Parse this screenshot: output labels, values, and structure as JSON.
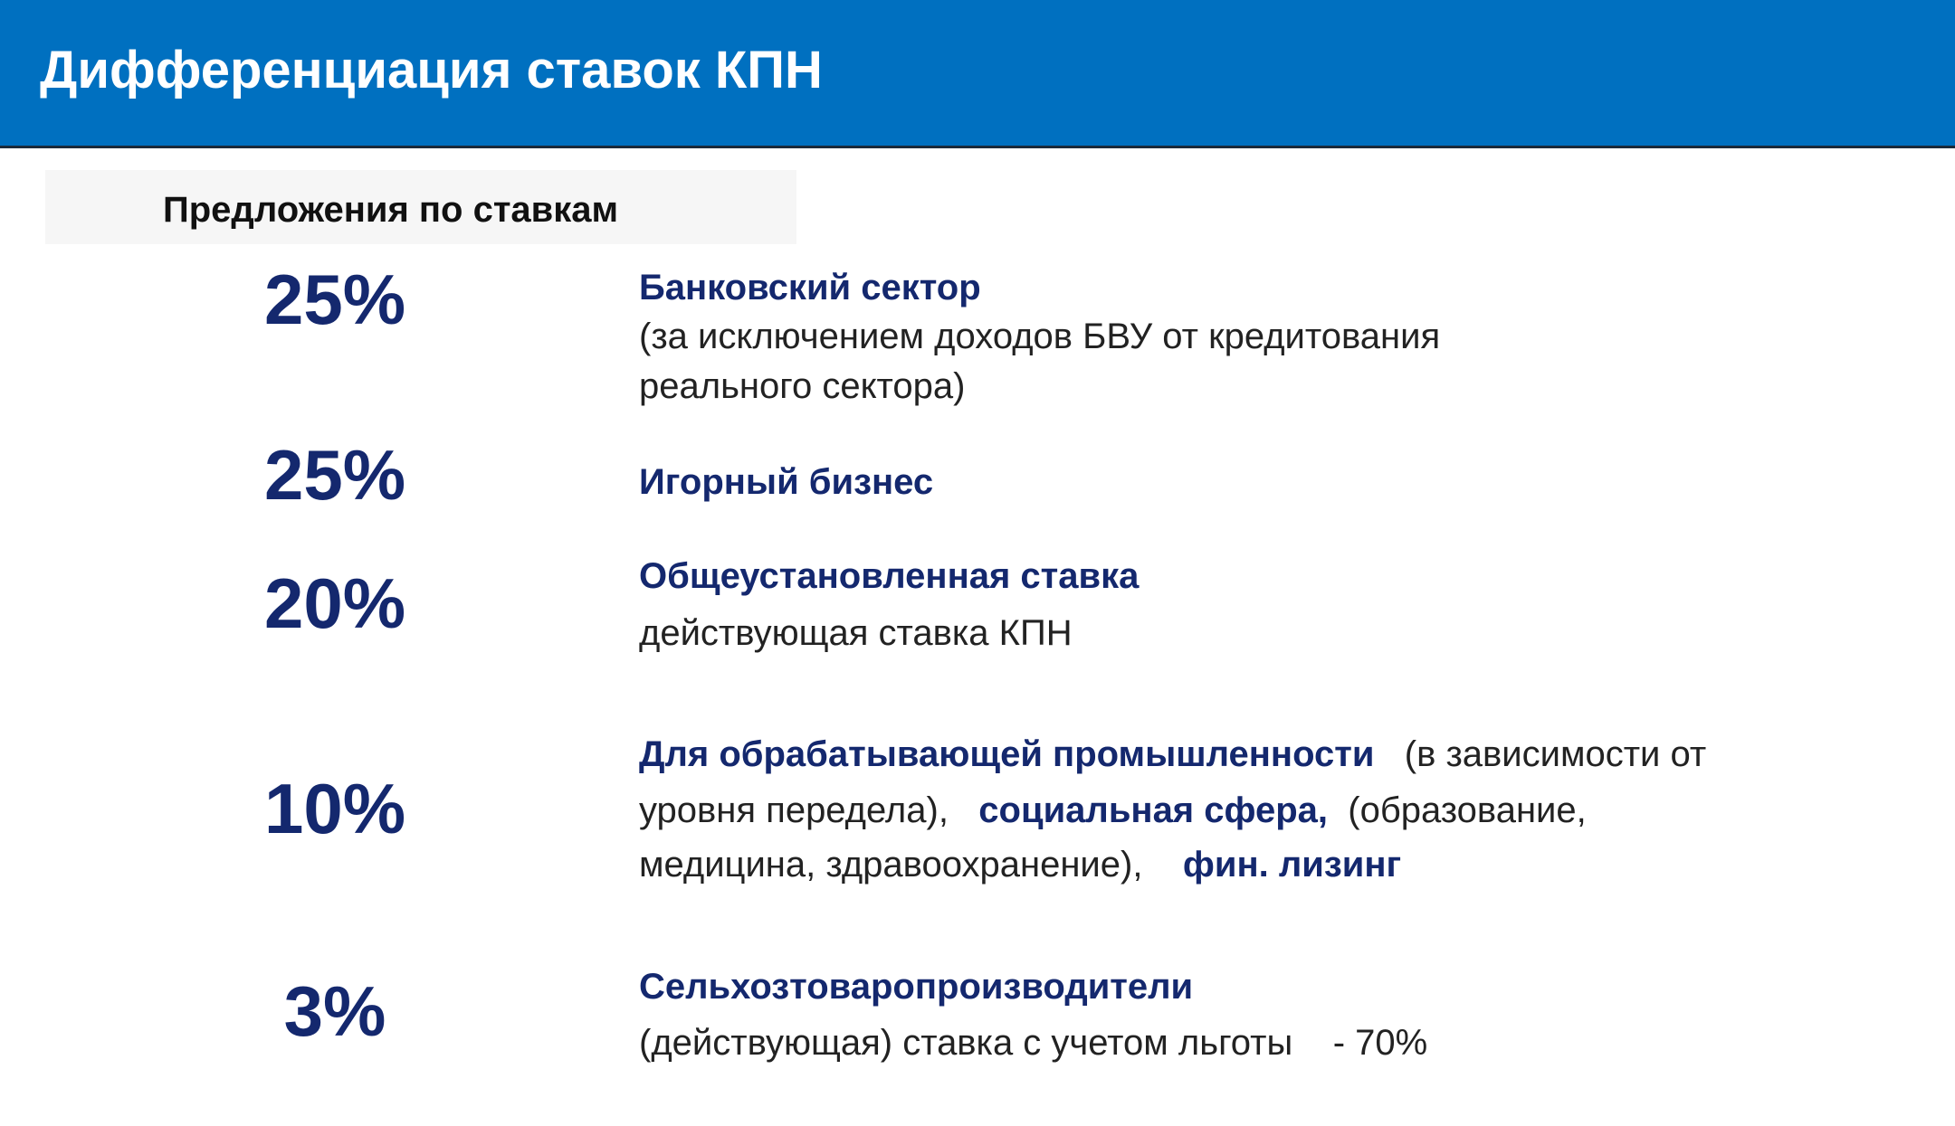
{
  "header": {
    "title": "Дифференциация ставок КПН",
    "background": "#0070C0"
  },
  "section_label": "Предложения по ставкам",
  "accent_color": "#14286e",
  "rates": [
    {
      "rate": "25%",
      "heading": "Банковский сектор",
      "body": [
        "(за исключением доходов БВУ от кредитования",
        "реального сектора)"
      ]
    },
    {
      "rate": "25%",
      "heading": "Игорный бизнес"
    },
    {
      "rate": "20%",
      "heading": "Общеустановленная ставка",
      "body": [
        "действующая ставка КПН"
      ]
    },
    {
      "rate": "10%",
      "parts": {
        "b1": "Для обрабатывающей промышленности",
        "t1": "(в зависимости от",
        "t2": "уровня передела),",
        "b2": "социальная сфера,",
        "t3": "(образование,",
        "t4": "медицина, здравоохранение),",
        "b3": "фин. лизинг"
      }
    },
    {
      "rate": "3%",
      "heading": "Сельхозтоваропроизводители",
      "body": [
        "(действующая) ставка с учетом льготы",
        "- 70%"
      ]
    }
  ]
}
